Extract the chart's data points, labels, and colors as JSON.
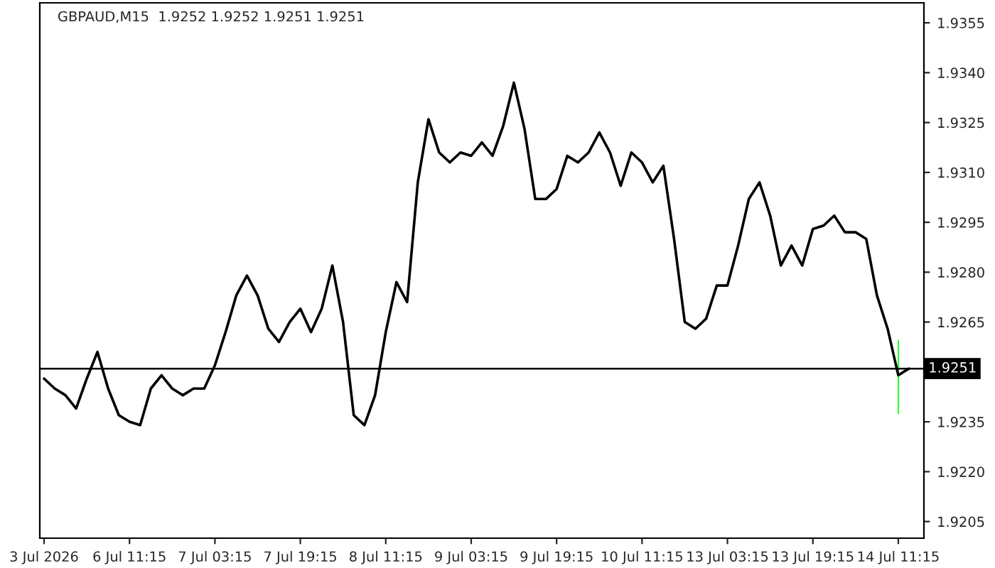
{
  "chart_data": {
    "type": "line",
    "title": "GBPAUD,M15  1.9252 1.9252 1.9251 1.9251",
    "categories": [
      "3 Jul 2026",
      null,
      null,
      null,
      null,
      null,
      null,
      null,
      "6 Jul 11:15",
      null,
      null,
      null,
      null,
      null,
      null,
      null,
      "7 Jul 03:15",
      null,
      null,
      null,
      null,
      null,
      null,
      null,
      "7 Jul 19:15",
      null,
      null,
      null,
      null,
      null,
      null,
      null,
      "8 Jul 11:15",
      null,
      null,
      null,
      null,
      null,
      null,
      null,
      "9 Jul 03:15",
      null,
      null,
      null,
      null,
      null,
      null,
      null,
      "9 Jul 19:15",
      null,
      null,
      null,
      null,
      null,
      null,
      null,
      "10 Jul 11:15",
      null,
      null,
      null,
      null,
      null,
      null,
      null,
      "13 Jul 03:15",
      null,
      null,
      null,
      null,
      null,
      null,
      null,
      "13 Jul 19:15",
      null,
      null,
      null,
      null,
      null,
      null,
      null,
      "14 Jul 11:15",
      null,
      null
    ],
    "series": [
      {
        "color": "#000000",
        "values": [
          1.9248,
          1.9245,
          1.9243,
          1.9239,
          1.9248,
          1.9256,
          1.9245,
          1.9237,
          1.9235,
          1.9234,
          1.9245,
          1.9249,
          1.9245,
          1.9243,
          1.9245,
          1.9245,
          1.9252,
          1.9262,
          1.9273,
          1.9279,
          1.9273,
          1.9263,
          1.9259,
          1.9265,
          1.9269,
          1.9262,
          1.9269,
          1.9282,
          1.9265,
          1.9237,
          1.9234,
          1.9243,
          1.9262,
          1.9277,
          1.9271,
          1.9307,
          1.9326,
          1.9316,
          1.9313,
          1.9316,
          1.9315,
          1.9319,
          1.9315,
          1.9324,
          1.9337,
          1.9323,
          1.9302,
          1.9302,
          1.9305,
          1.9315,
          1.9313,
          1.9316,
          1.9322,
          1.9316,
          1.9306,
          1.9316,
          1.9313,
          1.9307,
          1.9312,
          1.929,
          1.9265,
          1.9263,
          1.9266,
          1.9276,
          1.9276,
          1.9288,
          1.9302,
          1.9307,
          1.9297,
          1.9282,
          1.9288,
          1.9282,
          1.9293,
          1.9294,
          1.9297,
          1.9292,
          1.9292,
          1.929,
          1.9273,
          1.9263,
          1.9249,
          1.9251,
          null
        ]
      },
      {
        "type": "bar",
        "color": "#00ff00",
        "values": [
          null,
          null,
          null,
          null,
          null,
          null,
          null,
          null,
          null,
          null,
          null,
          null,
          null,
          null,
          null,
          null,
          null,
          null,
          null,
          null,
          null,
          null,
          null,
          null,
          null,
          null,
          null,
          null,
          null,
          null,
          null,
          null,
          null,
          null,
          null,
          null,
          null,
          null,
          null,
          null,
          null,
          null,
          null,
          null,
          null,
          null,
          null,
          null,
          null,
          null,
          null,
          null,
          null,
          null,
          null,
          null,
          null,
          null,
          null,
          null,
          null,
          null,
          null,
          null,
          null,
          null,
          null,
          null,
          null,
          null,
          null,
          null,
          null,
          null,
          null,
          null,
          null,
          null,
          null,
          null,
          0.0023,
          null,
          null
        ],
        "base": [
          null,
          null,
          null,
          null,
          null,
          null,
          null,
          null,
          null,
          null,
          null,
          null,
          null,
          null,
          null,
          null,
          null,
          null,
          null,
          null,
          null,
          null,
          null,
          null,
          null,
          null,
          null,
          null,
          null,
          null,
          null,
          null,
          null,
          null,
          null,
          null,
          null,
          null,
          null,
          null,
          null,
          null,
          null,
          null,
          null,
          null,
          null,
          null,
          null,
          null,
          null,
          null,
          null,
          null,
          null,
          null,
          null,
          null,
          null,
          null,
          null,
          null,
          null,
          null,
          null,
          null,
          null,
          null,
          null,
          null,
          null,
          null,
          null,
          null,
          null,
          null,
          null,
          null,
          null,
          null,
          1.9237,
          null,
          null
        ]
      }
    ],
    "ylim": [
      1.92,
      1.9361
    ],
    "yticks": [
      1.9205,
      {
        "value": 1.922,
        "label": "1.9220"
      },
      1.9235,
      1.9265,
      {
        "value": 1.928,
        "label": "1.9280"
      },
      1.9295,
      {
        "value": 1.931,
        "label": "1.9310"
      },
      1.9325,
      {
        "value": 1.934,
        "label": "1.9340"
      },
      1.9355
    ],
    "ref_lines": [
      {
        "axis": "y",
        "value": 1.9251,
        "label": "1.9251",
        "color": "#000000"
      }
    ],
    "grid": false,
    "legend": false
  }
}
